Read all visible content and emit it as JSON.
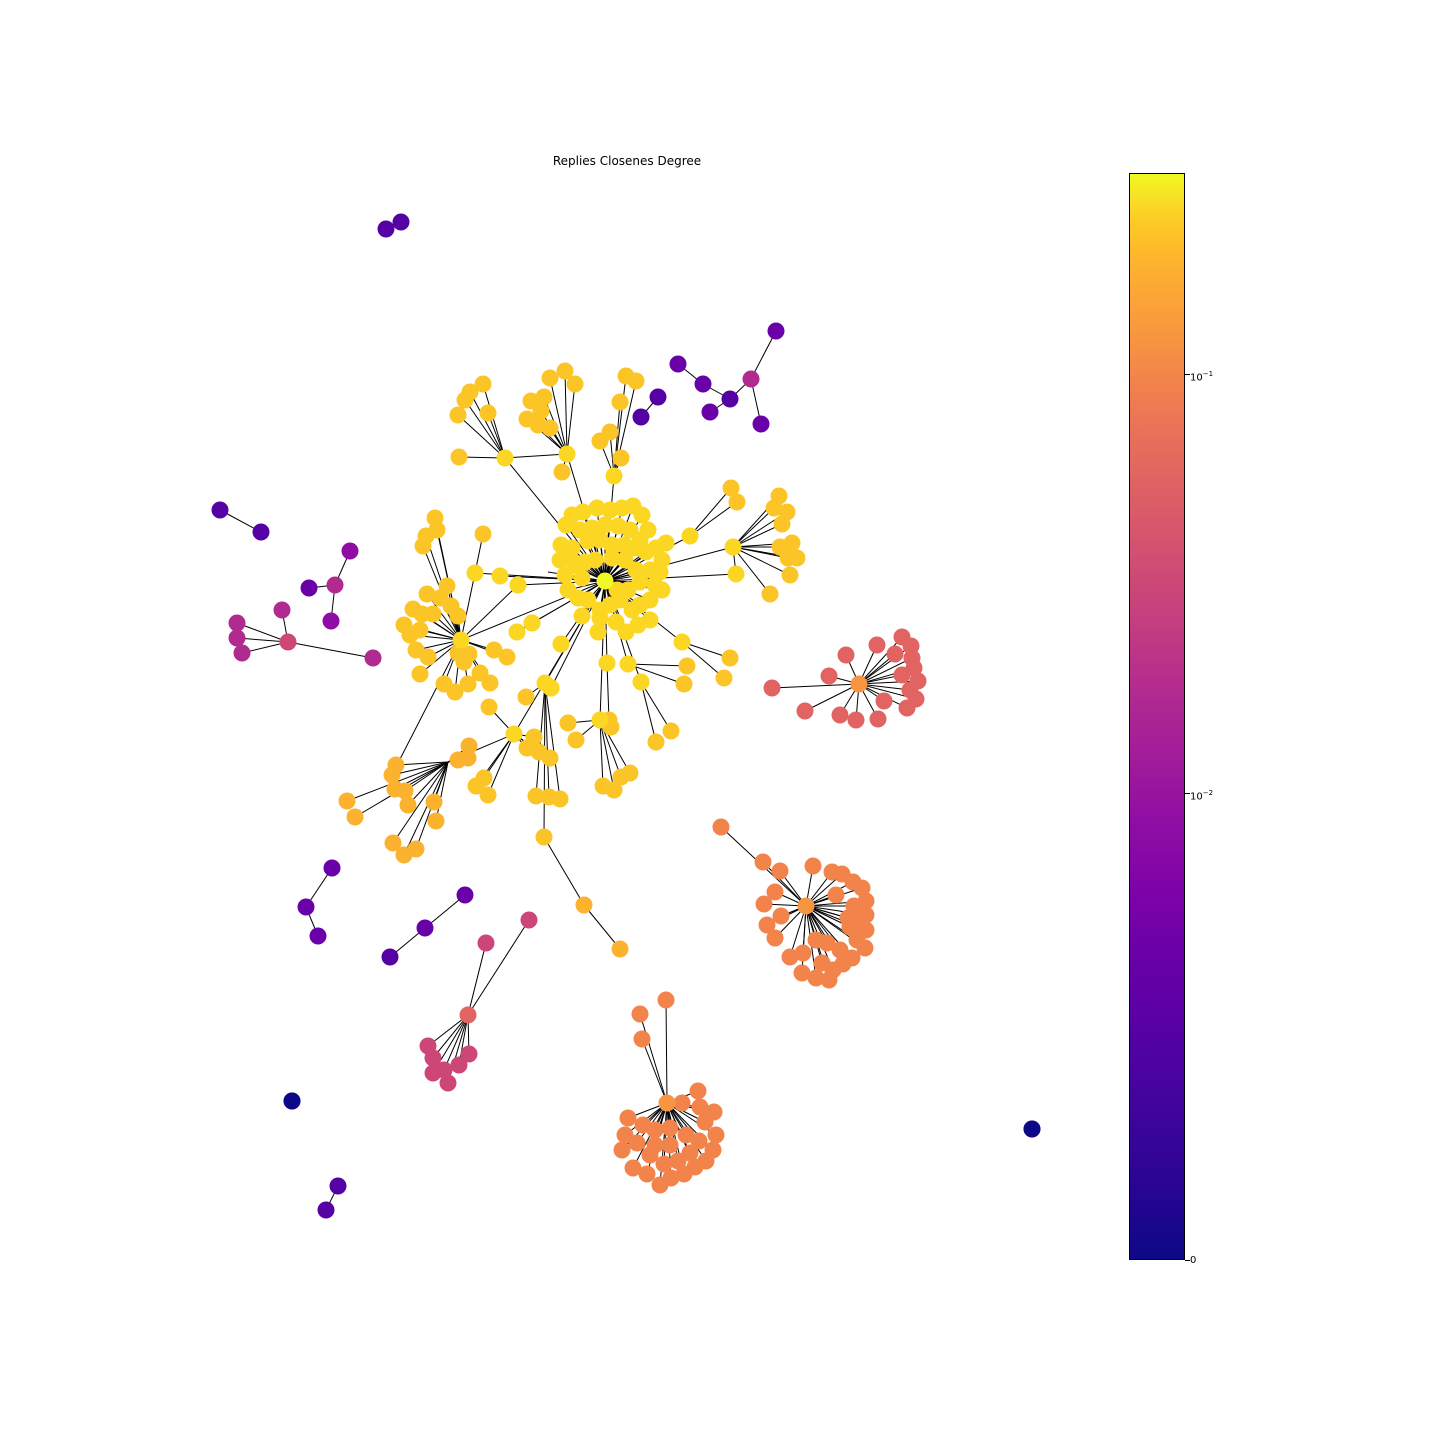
{
  "chart_data": {
    "type": "network",
    "title": "Replies Closenes Degree",
    "colormap": "plasma",
    "colorbar": {
      "scale": "log",
      "ticks": [
        {
          "value": 0,
          "label": "0"
        },
        {
          "value": 0.01,
          "label": "10",
          "exp": "−2"
        },
        {
          "value": 0.1,
          "label": "10",
          "exp": "−1"
        }
      ]
    },
    "node_color_stops": [
      "#0d0887",
      "#5601a4",
      "#6a00a8",
      "#8f0da4",
      "#b12a90",
      "#cc4778",
      "#e16462",
      "#f2844b",
      "#f89540",
      "#fbb32f",
      "#fcc527",
      "#fbd724",
      "#f0f921"
    ]
  }
}
